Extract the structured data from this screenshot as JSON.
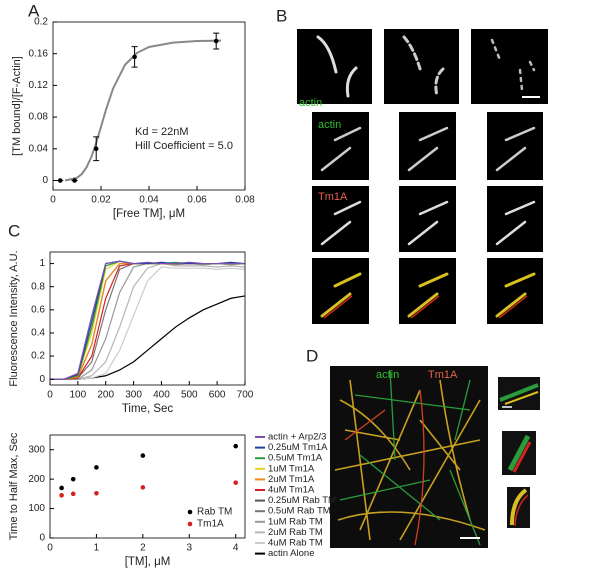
{
  "panel_labels": [
    "A",
    "B",
    "C",
    "D"
  ],
  "image_labels": [
    "actin",
    "actin",
    "Tm1A",
    "actin",
    "Tm1A"
  ],
  "chart_data": [
    {
      "type": "scatter",
      "xlabel": "[Free TM], μM",
      "ylabel": "[TM bound]/[F-Actin]",
      "annotations": [
        "Kd = 22nM",
        "Hill Coefficient = 5.0"
      ],
      "x": [
        0.003,
        0.009,
        0.018,
        0.034,
        0.068
      ],
      "series": [
        {
          "color": "#000000",
          "values": [
            0,
            0,
            0.04,
            0.156,
            0.176
          ],
          "errors": [
            0,
            0,
            0.015,
            0.013,
            0.01
          ]
        }
      ],
      "fit": {
        "color": "#888888",
        "x": [
          0.005,
          0.01,
          0.012,
          0.014,
          0.016,
          0.018,
          0.02,
          0.022,
          0.025,
          0.03,
          0.035,
          0.04,
          0.05,
          0.06,
          0.07
        ],
        "values": [
          0,
          0.0034,
          0.0082,
          0.0167,
          0.0299,
          0.0474,
          0.0678,
          0.0885,
          0.1158,
          0.146,
          0.161,
          0.1685,
          0.174,
          0.176,
          0.1765
        ]
      },
      "xlim": [
        0,
        0.08
      ],
      "xticks": [
        0,
        0.02,
        0.04,
        0.06,
        0.08
      ],
      "ylim": [
        -0.012,
        0.2
      ],
      "yticks": [
        0,
        0.04,
        0.08,
        0.12,
        0.16,
        0.2
      ]
    },
    {
      "type": "line",
      "xlabel": "Time, Sec",
      "ylabel": "Fluorescence Intensity, A.U.",
      "legend": "right",
      "x": [
        0,
        50,
        100,
        150,
        200,
        250,
        300,
        350,
        400,
        450,
        500,
        550,
        600,
        650,
        700
      ],
      "series": [
        {
          "name": "actin + Arp2/3",
          "color": "#7b4fb0",
          "values": [
            0,
            0,
            0.05,
            0.55,
            1.0,
            1.02,
            1.0,
            1.01,
            1.0,
            1.0,
            1.01,
            1.0,
            1.0,
            1.0,
            1.0
          ]
        },
        {
          "name": "0.25uM Tm1A",
          "color": "#1f3f9f",
          "values": [
            0,
            0,
            0.04,
            0.5,
            1.0,
            1.02,
            1.0,
            1.0,
            1.01,
            1.0,
            1.0,
            1.0,
            1.0,
            1.01,
            1.0
          ]
        },
        {
          "name": "0.5uM Tm1A",
          "color": "#2a9d3a",
          "values": [
            0,
            0,
            0.03,
            0.45,
            0.98,
            1.02,
            1.0,
            1.0,
            1.0,
            1.01,
            1.0,
            1.0,
            1.0,
            1.0,
            1.0
          ]
        },
        {
          "name": "1uM Tm1A",
          "color": "#e8d21d",
          "values": [
            0,
            0,
            0.03,
            0.4,
            0.95,
            1.02,
            1.0,
            1.0,
            1.0,
            1.0,
            1.01,
            1.0,
            1.0,
            1.0,
            1.0
          ]
        },
        {
          "name": "2uM Tm1A",
          "color": "#f08a1c",
          "values": [
            0,
            0,
            0.02,
            0.3,
            0.85,
            1.0,
            1.0,
            1.0,
            1.0,
            1.0,
            1.0,
            1.0,
            1.0,
            1.0,
            1.0
          ]
        },
        {
          "name": "4uM Tm1A",
          "color": "#d42020",
          "values": [
            0,
            0,
            0.01,
            0.2,
            0.7,
            0.98,
            1.0,
            1.0,
            1.0,
            1.0,
            1.0,
            1.0,
            1.0,
            1.0,
            1.0
          ]
        },
        {
          "name": "0.25uM Rab TM",
          "color": "#555555",
          "values": [
            0,
            0,
            0.02,
            0.3,
            0.85,
            1.0,
            1.0,
            1.0,
            1.0,
            1.0,
            1.0,
            1.0,
            1.0,
            1.0,
            1.0
          ]
        },
        {
          "name": "0.5uM Rab TM",
          "color": "#777777",
          "values": [
            0,
            0,
            0.01,
            0.15,
            0.6,
            0.95,
            1.0,
            1.0,
            1.0,
            1.0,
            1.0,
            1.0,
            1.0,
            1.0,
            1.0
          ]
        },
        {
          "name": "1uM Rab TM",
          "color": "#999999",
          "values": [
            0,
            0,
            0,
            0.08,
            0.35,
            0.75,
            0.97,
            1.0,
            1.0,
            0.99,
            1.0,
            0.99,
            1.0,
            0.99,
            1.0
          ]
        },
        {
          "name": "2uM Rab TM",
          "color": "#b5b5b5",
          "values": [
            0,
            0,
            0,
            0.03,
            0.15,
            0.45,
            0.8,
            0.96,
            1.0,
            0.98,
            0.98,
            0.98,
            0.97,
            0.98,
            0.97
          ]
        },
        {
          "name": "4uM Rab TM",
          "color": "#cccccc",
          "values": [
            0,
            0,
            0,
            0.01,
            0.05,
            0.25,
            0.55,
            0.85,
            0.97,
            0.96,
            0.96,
            0.96,
            0.95,
            0.96,
            0.95
          ]
        },
        {
          "name": "actin Alone",
          "color": "#000000",
          "values": [
            0,
            0,
            0,
            0.01,
            0.03,
            0.08,
            0.15,
            0.25,
            0.35,
            0.45,
            0.53,
            0.6,
            0.65,
            0.7,
            0.72
          ]
        }
      ],
      "xlim": [
        0,
        700
      ],
      "xticks": [
        0,
        100,
        200,
        300,
        400,
        500,
        600,
        700
      ],
      "ylim": [
        -0.05,
        1.1
      ],
      "yticks": [
        0,
        0.2,
        0.4,
        0.6,
        0.8,
        1
      ]
    },
    {
      "type": "scatter",
      "xlabel": "[TM], μM",
      "ylabel": "Time to Half Max, Sec",
      "legend": "lower right",
      "series": [
        {
          "name": "Rab TM",
          "color": "#000000",
          "x": [
            0.25,
            0.5,
            1,
            2,
            4
          ],
          "values": [
            170,
            200,
            240,
            280,
            312
          ]
        },
        {
          "name": "Tm1A",
          "color": "#d42020",
          "x": [
            0.25,
            0.5,
            1,
            2,
            4
          ],
          "values": [
            145,
            150,
            152,
            172,
            188
          ]
        }
      ],
      "xlim": [
        0,
        4.2
      ],
      "xticks": [
        0,
        1,
        2,
        3,
        4
      ],
      "ylim": [
        0,
        350
      ],
      "yticks": [
        0,
        100,
        200,
        300
      ]
    }
  ]
}
